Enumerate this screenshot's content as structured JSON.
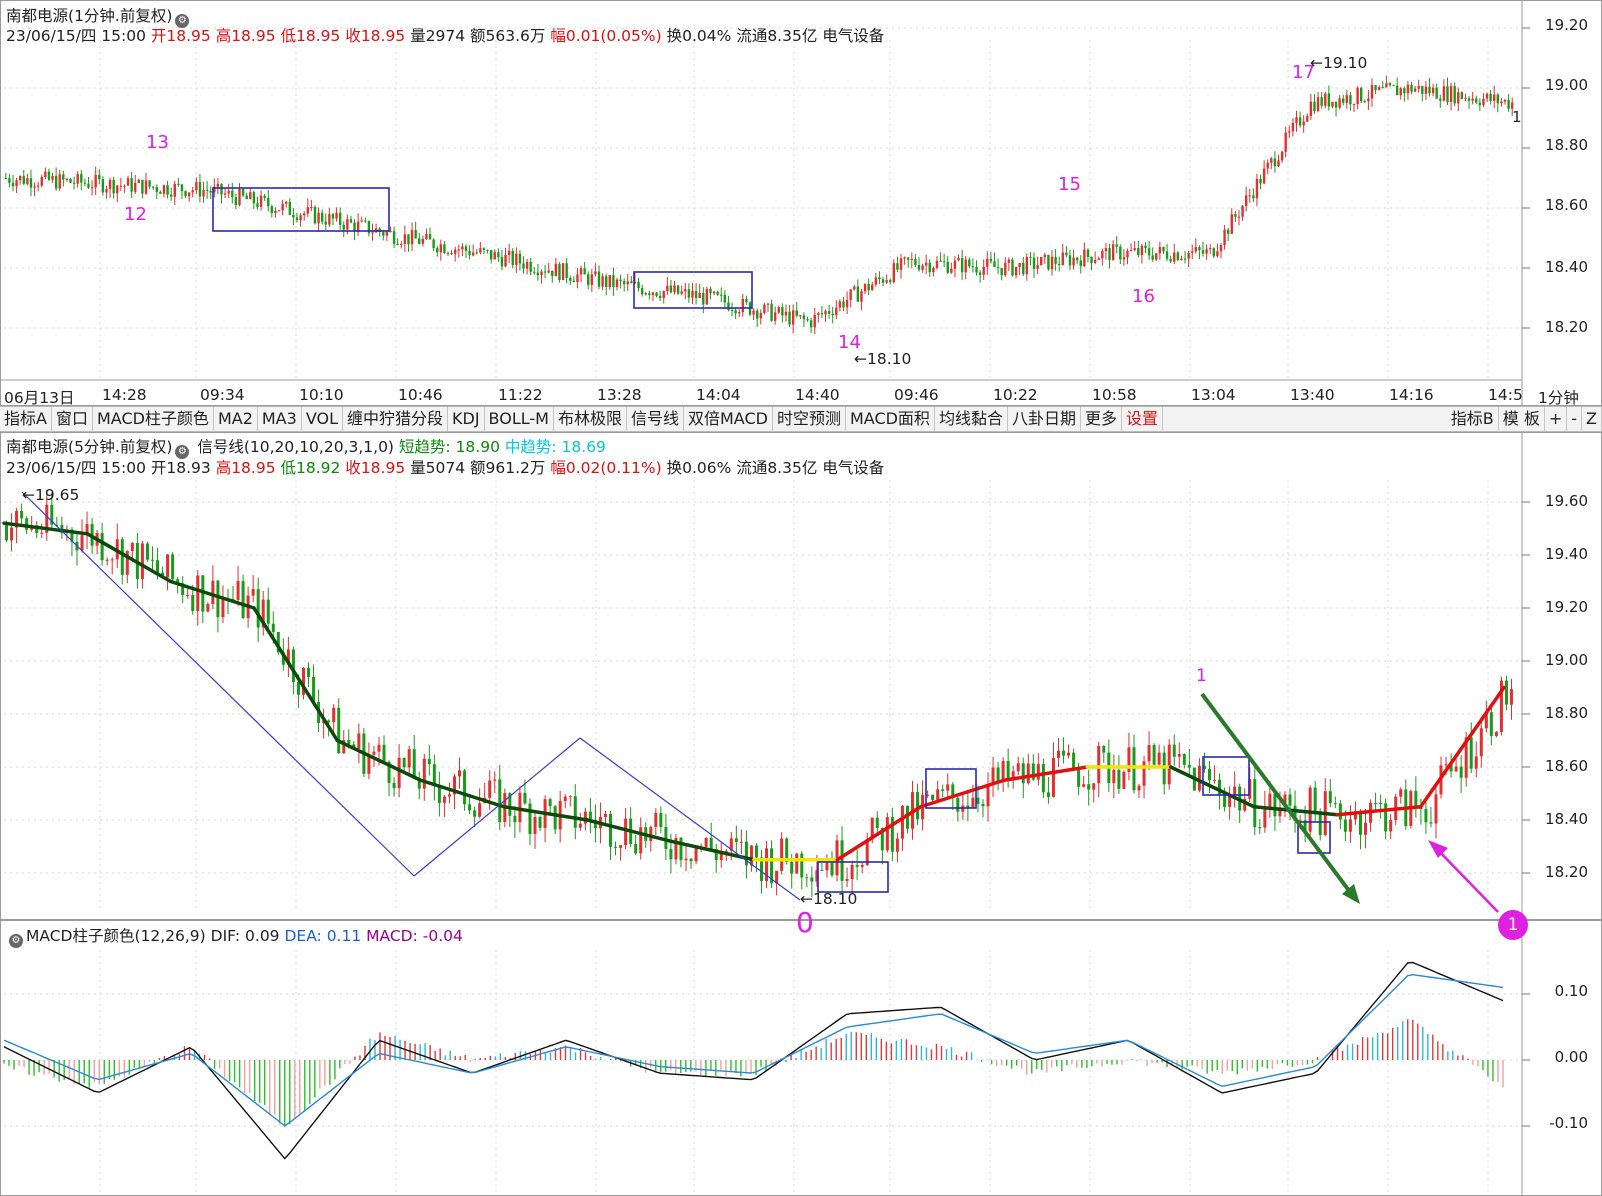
{
  "top_panel": {
    "name": "南都电源",
    "period": "(1分钟.前复权)",
    "info_date": "23/06/15/四 15:00",
    "open": "开18.95",
    "high": "高18.95",
    "low": "低18.95",
    "close": "收18.95",
    "volume": "量2974",
    "amount": "额563.6万",
    "change": "幅0.01(0.05%)",
    "turnover": "换0.04%",
    "float": "流通8.35亿",
    "industry": "电气设备",
    "yticks": [
      "19.20",
      "19.00",
      "18.80",
      "18.60",
      "18.40",
      "18.20"
    ],
    "markers": [
      "12",
      "13",
      "14",
      "15",
      "16",
      "17"
    ],
    "max_label": "19.10",
    "min_label": "18.10",
    "side_value": "1"
  },
  "time_axis": {
    "labels": [
      "06月13日",
      "14:28",
      "09:34",
      "10:10",
      "10:46",
      "11:22",
      "13:28",
      "14:04",
      "14:40",
      "09:46",
      "10:22",
      "10:58",
      "13:04",
      "13:40",
      "14:16",
      "14:5"
    ],
    "period_label": "1分钟"
  },
  "toolbar": {
    "items": [
      "指标A",
      "窗口",
      "MACD柱子颜色",
      "MA2",
      "MA3",
      "VOL",
      "缠中狞猎分段",
      "KDJ",
      "BOLL-M",
      "布林极限",
      "信号线",
      "双倍MACD",
      "时空预测",
      "MACD面积",
      "均线黏合",
      "八卦日期",
      "更多",
      "设置"
    ],
    "right_items": [
      "指标B",
      "模 板",
      "+",
      "-",
      "Z"
    ]
  },
  "mid_panel": {
    "name": "南都电源",
    "period": "(5分钟.前复权)",
    "indicator": "信号线(10,20,10,20,3,1,0)",
    "short_trend": "短趋势: 18.90",
    "mid_trend": "中趋势: 18.69",
    "info_date": "23/06/15/四 15:00",
    "open": "开18.93",
    "high": "高18.95",
    "low": "低18.92",
    "close": "收18.95",
    "volume": "量5074",
    "amount": "额961.2万",
    "change": "幅0.02(0.11%)",
    "turnover": "换0.06%",
    "float": "流通8.35亿",
    "industry": "电气设备",
    "yticks": [
      "19.60",
      "19.40",
      "19.20",
      "19.00",
      "18.80",
      "18.60",
      "18.40",
      "18.20"
    ],
    "max_label": "19.65",
    "min_label": "18.10",
    "marker_zero": "0",
    "marker_one": "1",
    "badge": "1"
  },
  "macd_panel": {
    "title": "MACD柱子颜色(12,26,9)",
    "dif": "DIF: 0.09",
    "dea": "DEA: 0.11",
    "macd": "MACD: -0.04",
    "yticks": [
      "0.10",
      "0.00",
      "-0.10"
    ]
  },
  "colors": {
    "up": "#e03030",
    "down": "#1a9a1a",
    "trend_dark": "#0b4a0b",
    "trend_red": "#e01010",
    "trend_yellow": "#f2e600",
    "box": "#2a2ab0",
    "magenta": "#e020e0"
  },
  "chart_data": [
    {
      "type": "line",
      "title": "南都电源(1分钟.前复权)",
      "ylim": [
        18.1,
        19.25
      ],
      "x": [
        "06月13日",
        "14:28",
        "09:34",
        "10:10",
        "10:46",
        "11:22",
        "13:28",
        "14:04",
        "14:40",
        "09:46",
        "10:22",
        "10:58",
        "13:04",
        "13:40",
        "14:16",
        "14:5"
      ],
      "series": [
        {
          "values": [
            18.7,
            18.68,
            18.66,
            18.58,
            18.5,
            18.43,
            18.35,
            18.3,
            18.22,
            18.42,
            18.4,
            18.45,
            18.45,
            18.95,
            19.0,
            18.95
          ]
        }
      ],
      "grid": true
    },
    {
      "type": "line",
      "title": "南都电源(5分钟.前复权)",
      "ylim": [
        18.05,
        19.7
      ],
      "series": [
        {
          "name": "短趋势",
          "values": [
            19.52,
            19.48,
            19.3,
            19.2,
            18.7,
            18.55,
            18.45,
            18.4,
            18.32,
            18.25,
            18.25,
            18.45,
            18.55,
            18.6,
            18.6,
            18.45,
            18.42,
            18.45,
            18.9
          ]
        },
        {
          "name": "中趋势",
          "values": [
            19.45,
            19.48,
            19.35,
            19.25,
            18.8,
            18.6,
            18.48,
            18.42,
            18.35,
            18.27,
            18.25,
            18.4,
            18.52,
            18.6,
            18.62,
            18.5,
            18.42,
            18.45,
            18.69
          ]
        }
      ],
      "grid": true
    },
    {
      "type": "line",
      "title": "MACD柱子颜色(12,26,9)",
      "ylim": [
        -0.2,
        0.2
      ],
      "series": [
        {
          "name": "DIF",
          "values": [
            0.02,
            -0.05,
            0.02,
            -0.15,
            0.03,
            -0.02,
            0.03,
            -0.02,
            -0.03,
            0.07,
            0.08,
            0.0,
            0.03,
            -0.05,
            -0.02,
            0.15,
            0.09
          ]
        },
        {
          "name": "DEA",
          "values": [
            0.03,
            -0.03,
            0.01,
            -0.1,
            0.01,
            -0.02,
            0.02,
            -0.01,
            -0.02,
            0.05,
            0.07,
            0.01,
            0.03,
            -0.04,
            -0.01,
            0.13,
            0.11
          ]
        },
        {
          "name": "MACD",
          "values": [
            -0.01,
            -0.04,
            0.02,
            -0.1,
            0.04,
            0.0,
            0.02,
            -0.02,
            -0.02,
            0.04,
            0.02,
            -0.02,
            0.0,
            -0.02,
            0.0,
            0.06,
            -0.04
          ]
        }
      ],
      "grid": true
    }
  ]
}
